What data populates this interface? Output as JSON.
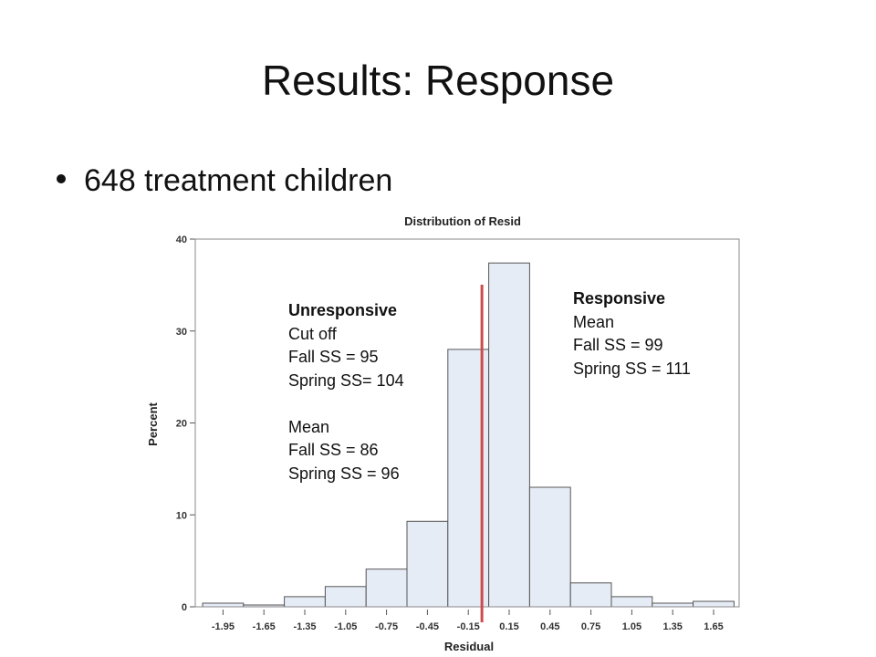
{
  "slide": {
    "title": "Results: Response",
    "bullet": "648 treatment children"
  },
  "chart_data": {
    "type": "bar",
    "title": "Distribution of Resid",
    "xlabel": "Residual",
    "ylabel": "Percent",
    "categories": [
      "-1.95",
      "-1.65",
      "-1.35",
      "-1.05",
      "-0.75",
      "-0.45",
      "-0.15",
      "0.15",
      "0.45",
      "0.75",
      "1.05",
      "1.35",
      "1.65"
    ],
    "values": [
      0.4,
      0.2,
      1.1,
      2.2,
      4.1,
      9.3,
      28.0,
      37.4,
      13.0,
      2.6,
      1.1,
      0.4,
      0.6
    ],
    "ylim": [
      0,
      40
    ],
    "yticks": [
      "0",
      "10",
      "20",
      "30",
      "40"
    ],
    "grid": false,
    "bar_fill": "#e6ecf6",
    "bar_stroke": "#555555",
    "cutoff": {
      "x": -0.05,
      "color": "#cc4b4b"
    }
  },
  "annotations": {
    "unresponsive": {
      "heading": "Unresponsive",
      "lines": [
        "Cut off",
        "Fall SS = 95",
        "Spring SS= 104"
      ],
      "lines2": [
        "Mean",
        "Fall SS = 86",
        "Spring SS = 96"
      ]
    },
    "responsive": {
      "heading": "Responsive",
      "lines": [
        "Mean",
        "Fall SS = 99",
        "Spring SS = 111"
      ]
    }
  }
}
